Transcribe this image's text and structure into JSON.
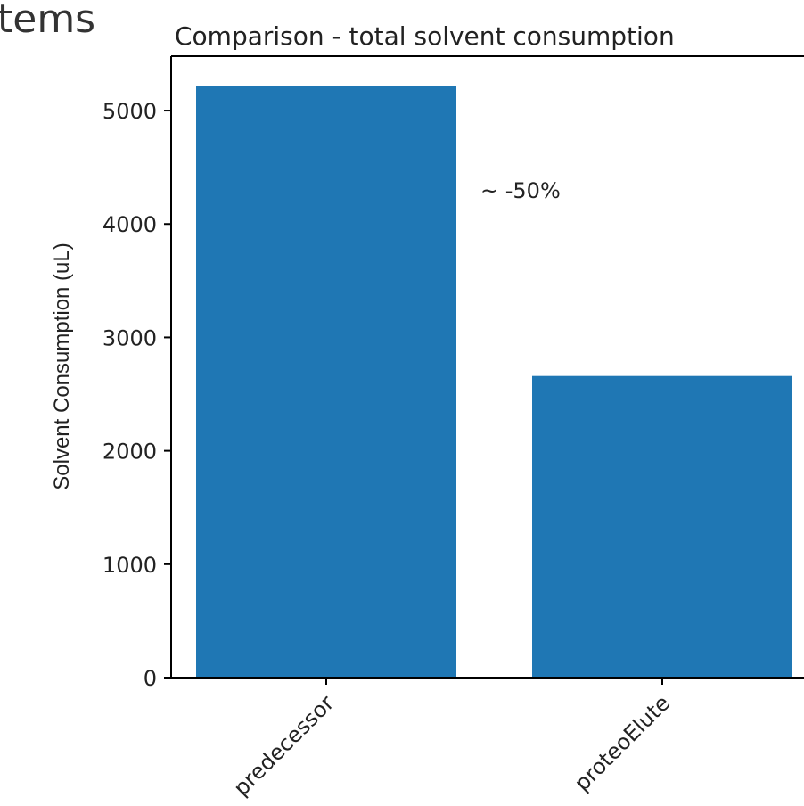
{
  "page": {
    "cut_off_heading": "tems"
  },
  "chart_data": {
    "type": "bar",
    "title": "Comparison - total solvent consumption",
    "categories": [
      "predecessor",
      "proteoElute"
    ],
    "values": [
      5220,
      2660
    ],
    "xlabel": "",
    "ylabel": "Solvent Consumption (uL)",
    "ylim": [
      0,
      5480
    ],
    "yticks": [
      0,
      1000,
      2000,
      3000,
      4000,
      5000
    ],
    "ytick_labels": [
      "0",
      "1000",
      "2000",
      "3000",
      "4000",
      "5000"
    ],
    "annotation": "~ -50%",
    "grid": false,
    "bar_color": "#1f77b4"
  }
}
